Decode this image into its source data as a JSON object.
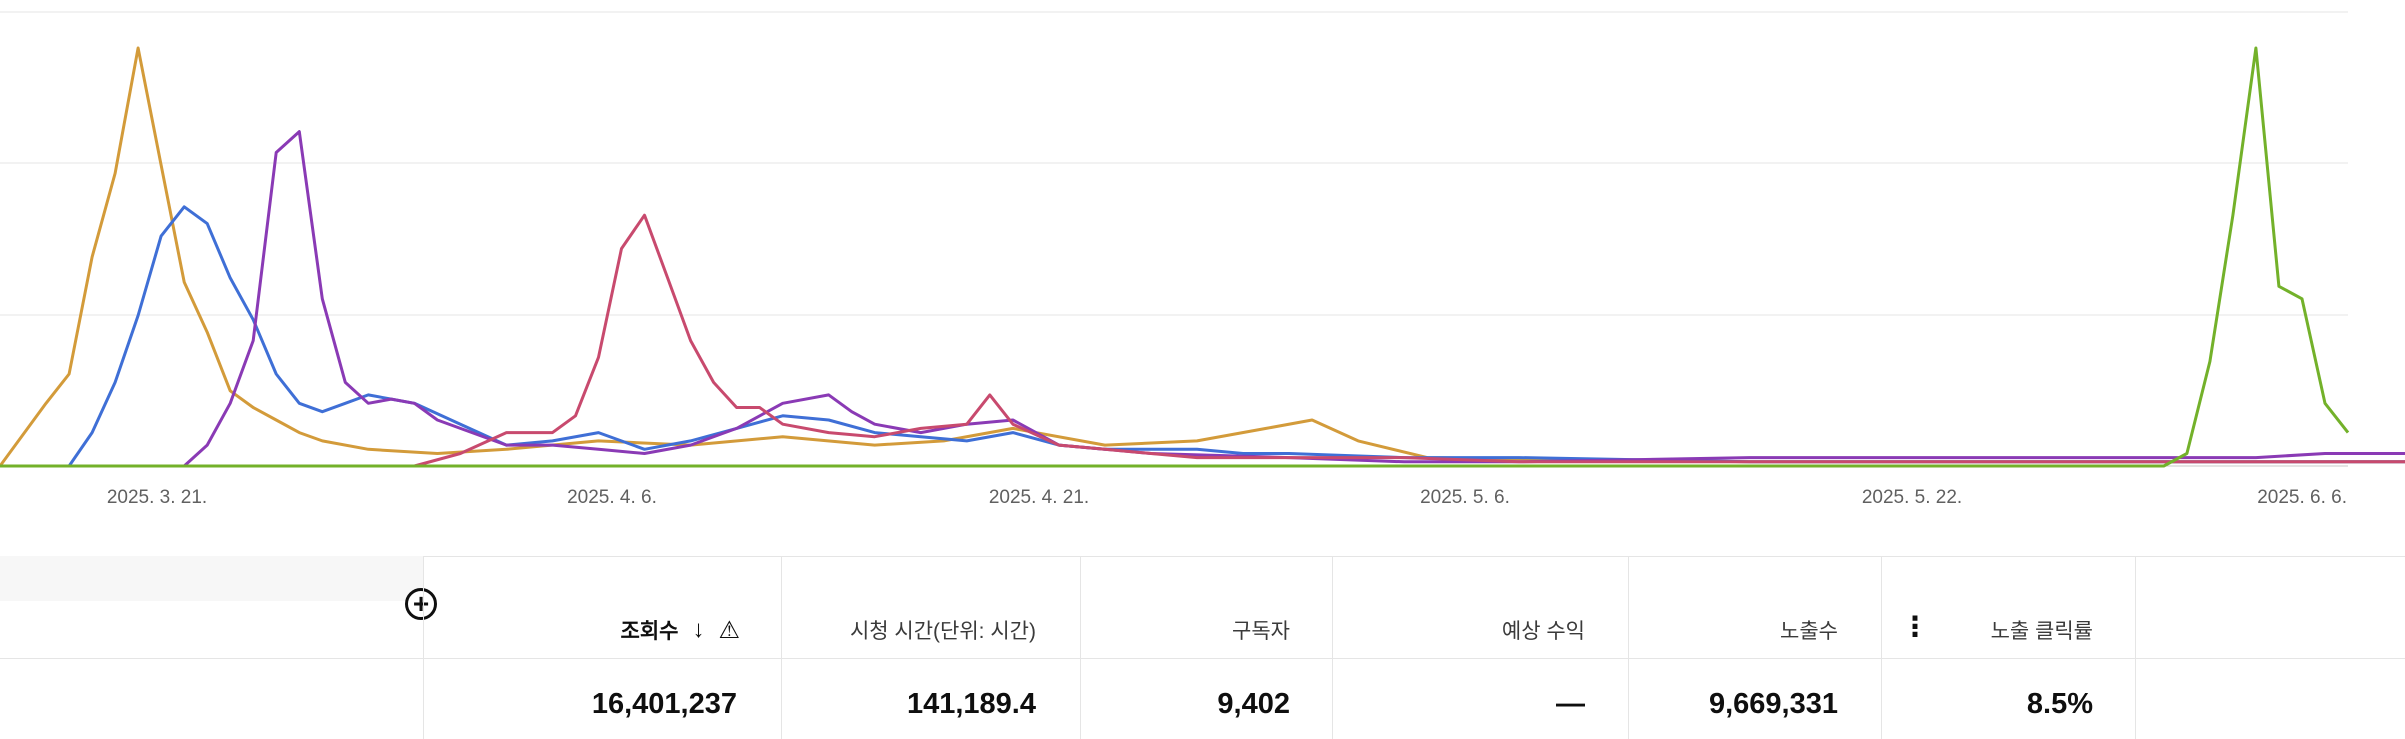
{
  "chart_data": {
    "type": "line",
    "x_labels": [
      "2025. 3. 21.",
      "2025. 4. 6.",
      "2025. 4. 21.",
      "2025. 5. 6.",
      "2025. 5. 22.",
      "2025. 6. 6."
    ],
    "grid": true,
    "series": [
      {
        "color": "#d39b3a",
        "points": [
          [
            14,
            0
          ],
          [
            16,
            0.15
          ],
          [
            17,
            0.22
          ],
          [
            18,
            0.5
          ],
          [
            19,
            0.7
          ],
          [
            20,
            1.0
          ],
          [
            21,
            0.72
          ],
          [
            22,
            0.44
          ],
          [
            23,
            0.32
          ],
          [
            24,
            0.18
          ],
          [
            25,
            0.14
          ],
          [
            26,
            0.11
          ],
          [
            27,
            0.08
          ],
          [
            28,
            0.06
          ],
          [
            30,
            0.04
          ],
          [
            33,
            0.03
          ],
          [
            36,
            0.04
          ],
          [
            40,
            0.06
          ],
          [
            44,
            0.05
          ],
          [
            48,
            0.07
          ],
          [
            52,
            0.05
          ],
          [
            55,
            0.06
          ],
          [
            58,
            0.09
          ],
          [
            62,
            0.05
          ],
          [
            66,
            0.06
          ],
          [
            69,
            0.09
          ],
          [
            71,
            0.11
          ],
          [
            73,
            0.06
          ],
          [
            76,
            0.02
          ],
          [
            90,
            0.01
          ],
          [
            105,
            0.01
          ],
          [
            120,
            0.01
          ]
        ]
      },
      {
        "color": "#3f6fd6",
        "points": [
          [
            14,
            0
          ],
          [
            17,
            0
          ],
          [
            18,
            0.08
          ],
          [
            19,
            0.2
          ],
          [
            20,
            0.36
          ],
          [
            21,
            0.55
          ],
          [
            22,
            0.62
          ],
          [
            23,
            0.58
          ],
          [
            24,
            0.45
          ],
          [
            25,
            0.35
          ],
          [
            26,
            0.22
          ],
          [
            27,
            0.15
          ],
          [
            28,
            0.13
          ],
          [
            29,
            0.15
          ],
          [
            30,
            0.17
          ],
          [
            31,
            0.16
          ],
          [
            32,
            0.15
          ],
          [
            34,
            0.1
          ],
          [
            36,
            0.05
          ],
          [
            38,
            0.06
          ],
          [
            40,
            0.08
          ],
          [
            42,
            0.04
          ],
          [
            44,
            0.06
          ],
          [
            46,
            0.09
          ],
          [
            48,
            0.12
          ],
          [
            50,
            0.11
          ],
          [
            52,
            0.08
          ],
          [
            54,
            0.07
          ],
          [
            56,
            0.06
          ],
          [
            58,
            0.08
          ],
          [
            60,
            0.05
          ],
          [
            62,
            0.04
          ],
          [
            64,
            0.04
          ],
          [
            66,
            0.04
          ],
          [
            68,
            0.03
          ],
          [
            70,
            0.03
          ],
          [
            75,
            0.02
          ],
          [
            80,
            0.02
          ],
          [
            90,
            0.01
          ],
          [
            100,
            0.01
          ],
          [
            110,
            0.01
          ],
          [
            120,
            0.01
          ]
        ]
      },
      {
        "color": "#8a3ab5",
        "points": [
          [
            14,
            0
          ],
          [
            22,
            0
          ],
          [
            23,
            0.05
          ],
          [
            24,
            0.15
          ],
          [
            25,
            0.3
          ],
          [
            26,
            0.75
          ],
          [
            27,
            0.8
          ],
          [
            28,
            0.4
          ],
          [
            29,
            0.2
          ],
          [
            30,
            0.15
          ],
          [
            31,
            0.16
          ],
          [
            32,
            0.15
          ],
          [
            33,
            0.11
          ],
          [
            34,
            0.09
          ],
          [
            36,
            0.05
          ],
          [
            38,
            0.05
          ],
          [
            40,
            0.04
          ],
          [
            42,
            0.03
          ],
          [
            44,
            0.05
          ],
          [
            46,
            0.09
          ],
          [
            48,
            0.15
          ],
          [
            50,
            0.17
          ],
          [
            51,
            0.13
          ],
          [
            52,
            0.1
          ],
          [
            54,
            0.08
          ],
          [
            56,
            0.1
          ],
          [
            58,
            0.11
          ],
          [
            60,
            0.05
          ],
          [
            62,
            0.04
          ],
          [
            64,
            0.03
          ],
          [
            70,
            0.02
          ],
          [
            75,
            0.01
          ],
          [
            80,
            0.01
          ],
          [
            90,
            0.02
          ],
          [
            100,
            0.02
          ],
          [
            107,
            0.02
          ],
          [
            110,
            0.02
          ],
          [
            112,
            0.02
          ],
          [
            115,
            0.03
          ],
          [
            120,
            0.03
          ]
        ]
      },
      {
        "color": "#c84a6e",
        "points": [
          [
            14,
            0
          ],
          [
            32,
            0
          ],
          [
            34,
            0.03
          ],
          [
            36,
            0.08
          ],
          [
            38,
            0.08
          ],
          [
            39,
            0.12
          ],
          [
            40,
            0.26
          ],
          [
            41,
            0.52
          ],
          [
            42,
            0.6
          ],
          [
            43,
            0.45
          ],
          [
            44,
            0.3
          ],
          [
            45,
            0.2
          ],
          [
            46,
            0.14
          ],
          [
            47,
            0.14
          ],
          [
            48,
            0.1
          ],
          [
            50,
            0.08
          ],
          [
            52,
            0.07
          ],
          [
            54,
            0.09
          ],
          [
            56,
            0.1
          ],
          [
            57,
            0.17
          ],
          [
            58,
            0.1
          ],
          [
            60,
            0.05
          ],
          [
            62,
            0.04
          ],
          [
            64,
            0.03
          ],
          [
            66,
            0.02
          ],
          [
            70,
            0.02
          ],
          [
            75,
            0.02
          ],
          [
            80,
            0.01
          ],
          [
            90,
            0.01
          ],
          [
            100,
            0.01
          ],
          [
            110,
            0.01
          ],
          [
            120,
            0.01
          ]
        ]
      },
      {
        "color": "#73b12a",
        "points": [
          [
            14,
            0
          ],
          [
            108,
            0
          ],
          [
            109,
            0.03
          ],
          [
            110,
            0.25
          ],
          [
            111,
            0.6
          ],
          [
            112,
            1.0
          ],
          [
            113,
            0.43
          ],
          [
            114,
            0.4
          ],
          [
            115,
            0.15
          ],
          [
            116,
            0.08
          ]
        ]
      }
    ]
  },
  "table": {
    "headers": {
      "views": "조회수",
      "watch_time": "시청 시간(단위: 시간)",
      "subscribers": "구독자",
      "revenue": "예상 수익",
      "impressions": "노출수",
      "ctr": "노출 클릭률"
    },
    "totals": {
      "views": "16,401,237",
      "watch_time": "141,189.4",
      "subscribers": "9,402",
      "revenue": "—",
      "impressions": "9,669,331",
      "ctr": "8.5%"
    },
    "icons": [
      "add-circle-icon",
      "sort-down-icon",
      "warning-icon",
      "more-vert-icon"
    ]
  }
}
